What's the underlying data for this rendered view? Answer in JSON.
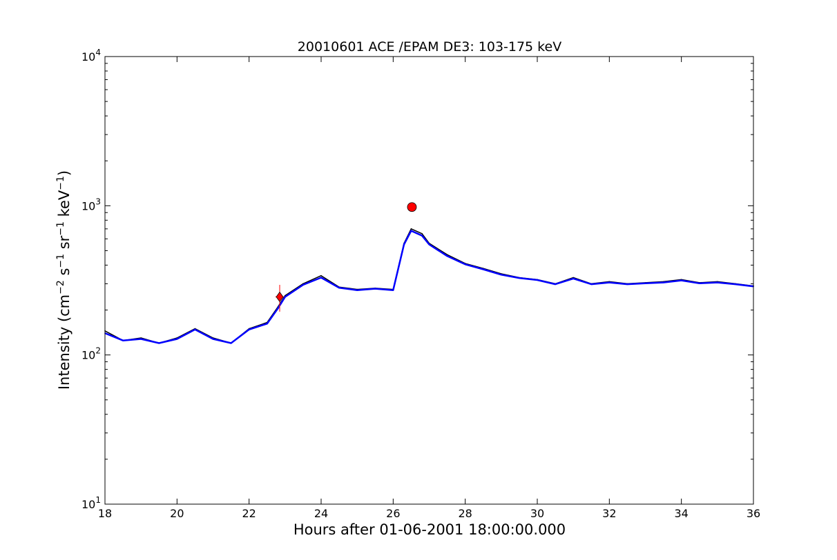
{
  "chart_data": {
    "type": "line",
    "title": "20010601 ACE /EPAM DE3: 103-175 keV",
    "xlabel": "Hours after 01-06-2001 18:00:00.000",
    "ylabel": {
      "prefix": "Intensity (cm",
      "exp1": "−2",
      "s": " s",
      "exp2": "−1",
      "sr": " sr",
      "exp3": "−1",
      "kev": " keV",
      "exp4": "−1",
      "suffix": ")"
    },
    "xlim": [
      18,
      36
    ],
    "ylim": [
      10,
      10000
    ],
    "yscale": "log",
    "grid": false,
    "x_ticks": [
      "18",
      "20",
      "22",
      "24",
      "26",
      "28",
      "30",
      "32",
      "34",
      "36"
    ],
    "y_ticks": [
      {
        "base": "10",
        "exp": "1"
      },
      {
        "base": "10",
        "exp": "2"
      },
      {
        "base": "10",
        "exp": "3"
      },
      {
        "base": "10",
        "exp": "4"
      }
    ],
    "series": [
      {
        "color": "#000000",
        "kind": "raw",
        "x": [
          18.0,
          18.5,
          19.0,
          19.5,
          20.0,
          20.5,
          21.0,
          21.5,
          22.0,
          22.5,
          22.8,
          23.0,
          23.5,
          24.0,
          24.5,
          25.0,
          25.5,
          26.0,
          26.3,
          26.5,
          26.8,
          27.0,
          27.5,
          28.0,
          28.5,
          29.0,
          29.5,
          30.0,
          30.5,
          31.0,
          31.5,
          32.0,
          32.5,
          33.0,
          33.5,
          34.0,
          34.5,
          35.0,
          35.5,
          36.0
        ],
        "y": [
          145,
          125,
          130,
          120,
          130,
          150,
          130,
          120,
          150,
          165,
          210,
          250,
          300,
          340,
          285,
          275,
          280,
          275,
          560,
          700,
          650,
          560,
          470,
          410,
          380,
          350,
          330,
          320,
          300,
          330,
          300,
          310,
          300,
          305,
          310,
          320,
          305,
          310,
          300,
          290
        ]
      },
      {
        "color": "#0000ff",
        "kind": "smoothed",
        "x": [
          18.0,
          18.5,
          19.0,
          19.5,
          20.0,
          20.5,
          21.0,
          21.5,
          22.0,
          22.5,
          22.8,
          23.0,
          23.5,
          24.0,
          24.5,
          25.0,
          25.5,
          26.0,
          26.3,
          26.5,
          26.8,
          27.0,
          27.5,
          28.0,
          28.5,
          29.0,
          29.5,
          30.0,
          30.5,
          31.0,
          31.5,
          32.0,
          32.5,
          33.0,
          33.5,
          34.0,
          34.5,
          35.0,
          35.5,
          36.0
        ],
        "y": [
          140,
          125,
          128,
          120,
          128,
          148,
          128,
          120,
          148,
          162,
          205,
          245,
          295,
          330,
          282,
          272,
          278,
          272,
          550,
          680,
          630,
          550,
          460,
          405,
          375,
          345,
          328,
          318,
          298,
          325,
          298,
          306,
          298,
          302,
          306,
          316,
          302,
          306,
          298,
          288
        ]
      }
    ],
    "markers": [
      {
        "shape": "diamond",
        "color": "#ff0000",
        "x": 22.85,
        "y": 245
      },
      {
        "shape": "circle",
        "color": "#ff0000",
        "x": 26.52,
        "y": 980
      }
    ],
    "onset_errorbar": {
      "color": "#ff0000",
      "x": 22.85,
      "y": 245,
      "xerr": 0.12,
      "ylow": 195,
      "yhigh": 295
    }
  }
}
